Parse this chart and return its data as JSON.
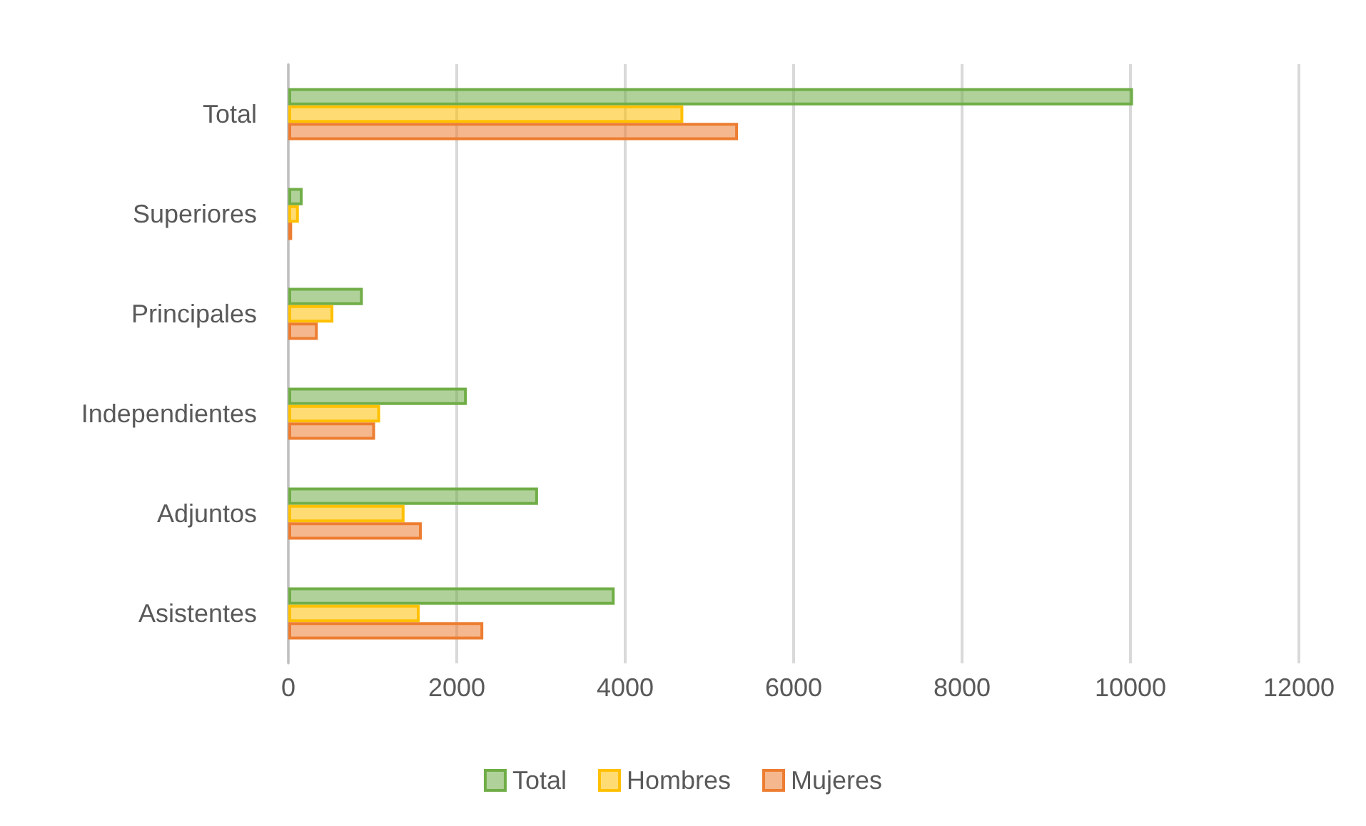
{
  "chart_data": {
    "type": "bar",
    "orientation": "horizontal",
    "categories": [
      "Total",
      "Superiores",
      "Principales",
      "Independientes",
      "Adjuntos",
      "Asistentes"
    ],
    "series": [
      {
        "name": "Total",
        "color": "#70ad47",
        "values": [
          10030,
          170,
          885,
          2120,
          2965,
          3875
        ]
      },
      {
        "name": "Hombres",
        "color": "#ffc000",
        "values": [
          4690,
          125,
          535,
          1090,
          1380,
          1560
        ]
      },
      {
        "name": "Mujeres",
        "color": "#ed7d31",
        "values": [
          5340,
          45,
          350,
          1030,
          1585,
          2315
        ]
      }
    ],
    "xlim": [
      0,
      12000
    ],
    "xticks": [
      0,
      2000,
      4000,
      6000,
      8000,
      10000,
      12000
    ],
    "grid": "x",
    "legend": "bottom"
  }
}
